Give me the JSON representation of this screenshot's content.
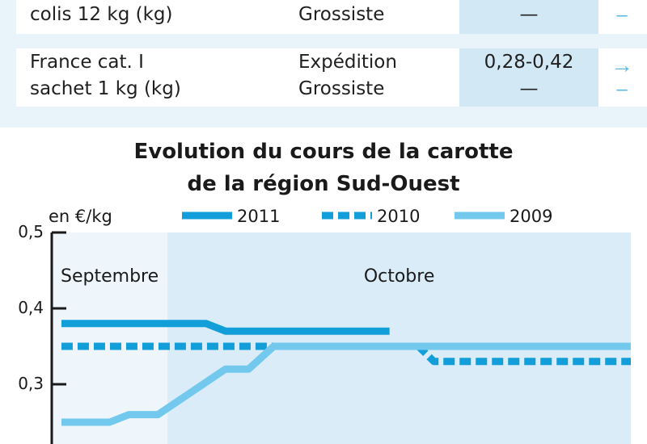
{
  "table": {
    "rows": [
      {
        "product_lines": [
          "colis 12 kg (kg)"
        ],
        "stage_lines": [
          "Grossiste"
        ],
        "price_lines": [
          "—"
        ],
        "trend_lines": [
          "–"
        ]
      },
      {
        "product_lines": [
          "France cat. I",
          "sachet 1 kg (kg)"
        ],
        "stage_lines": [
          "Expédition",
          "Grossiste"
        ],
        "price_lines": [
          "0,28-0,42",
          "—"
        ],
        "trend_lines": [
          "→",
          "–"
        ]
      }
    ]
  },
  "chart_data": {
    "type": "line",
    "title": "Evolution du cours de la carotte",
    "subtitle": "de la région Sud-Ouest",
    "ylabel": "en €/kg",
    "ylim": [
      0.2,
      0.5
    ],
    "yticks": [
      0.3,
      0.4,
      0.5
    ],
    "ytick_labels": [
      "0,3",
      "0,4",
      "0,5"
    ],
    "xlim": [
      0,
      30
    ],
    "periods": [
      {
        "label": "Septembre",
        "from": 0,
        "to": 6
      },
      {
        "label": "Octobre",
        "from": 6,
        "to": 30
      }
    ],
    "legend": {
      "placement": "top"
    },
    "series": [
      {
        "name": "2011",
        "color": "#129fd9",
        "dash": "solid",
        "points": [
          [
            0.5,
            0.38
          ],
          [
            8,
            0.38
          ],
          [
            9,
            0.37
          ],
          [
            17.5,
            0.37
          ]
        ]
      },
      {
        "name": "2010",
        "color": "#129fd9",
        "dash": "dashed",
        "points": [
          [
            0.5,
            0.35
          ],
          [
            19,
            0.35
          ],
          [
            19.8,
            0.33
          ],
          [
            30,
            0.33
          ]
        ]
      },
      {
        "name": "2009",
        "color": "#73c8ee",
        "dash": "solid",
        "points": [
          [
            0.5,
            0.25
          ],
          [
            3,
            0.25
          ],
          [
            4,
            0.26
          ],
          [
            5.5,
            0.26
          ],
          [
            9,
            0.32
          ],
          [
            10.2,
            0.32
          ],
          [
            11.5,
            0.35
          ],
          [
            30,
            0.35
          ]
        ]
      }
    ]
  }
}
